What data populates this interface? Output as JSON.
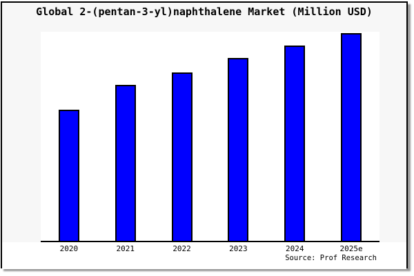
{
  "page": {
    "background_color": "#f7f7f7",
    "plot_background_color": "#ffffff",
    "frame_border_color": "#000000"
  },
  "chart_data": {
    "type": "bar",
    "title": "Global 2-(pentan-3-yl)naphthalene Market (Million USD)",
    "categories": [
      "2020",
      "2021",
      "2022",
      "2023",
      "2024",
      "2025e"
    ],
    "values": [
      63,
      75,
      81,
      88,
      94,
      100
    ],
    "values_note": "No y-axis scale or data labels are shown in the image; values are relative bar heights normalized to 2025e = 100.",
    "xlabel": "",
    "ylabel": "",
    "ylim": [
      0,
      100
    ],
    "grid": false,
    "legend": false,
    "bar_color": "#0000ff",
    "bar_border_color": "#000000",
    "source": "Source: Prof Research"
  }
}
